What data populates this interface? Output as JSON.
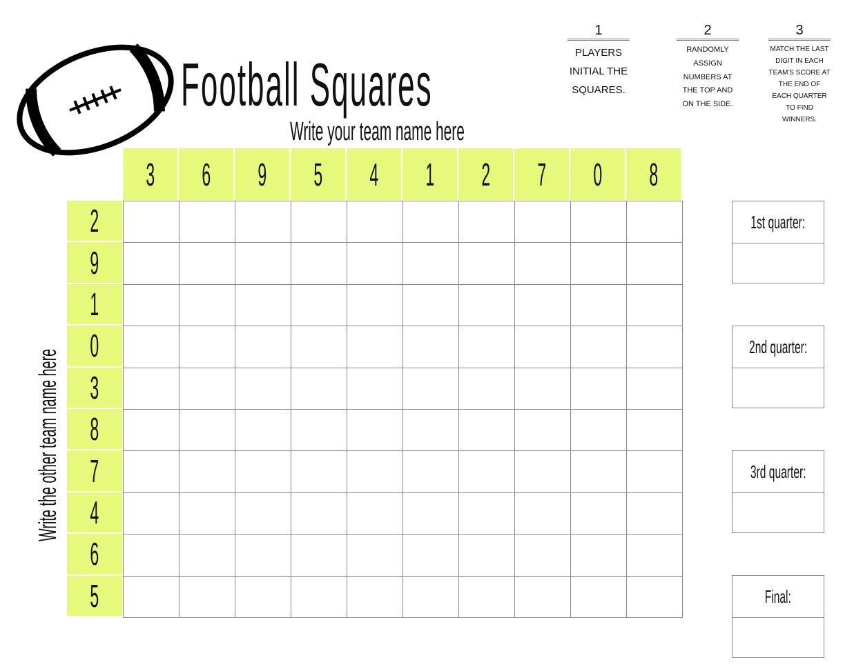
{
  "title": "Football Squares",
  "team_top": "Write your team name here",
  "team_side": "Write the other team name here",
  "steps": [
    {
      "num": "1",
      "text": "Players initial the squares."
    },
    {
      "num": "2",
      "text": "randomly assign numbers at the top and on the side."
    },
    {
      "num": "3",
      "text": "match the last digit in each team's score at the end of each quarter to find winners."
    }
  ],
  "top_numbers": [
    "3",
    "6",
    "9",
    "5",
    "4",
    "1",
    "2",
    "7",
    "0",
    "8"
  ],
  "side_numbers": [
    "2",
    "9",
    "1",
    "0",
    "3",
    "8",
    "7",
    "4",
    "6",
    "5"
  ],
  "quarters": [
    "1st quarter:",
    "2nd quarter:",
    "3rd quarter:",
    "Final:"
  ],
  "colors": {
    "highlight": "#e6f97a",
    "grid": "#888888"
  },
  "logo_icon": "football-icon"
}
